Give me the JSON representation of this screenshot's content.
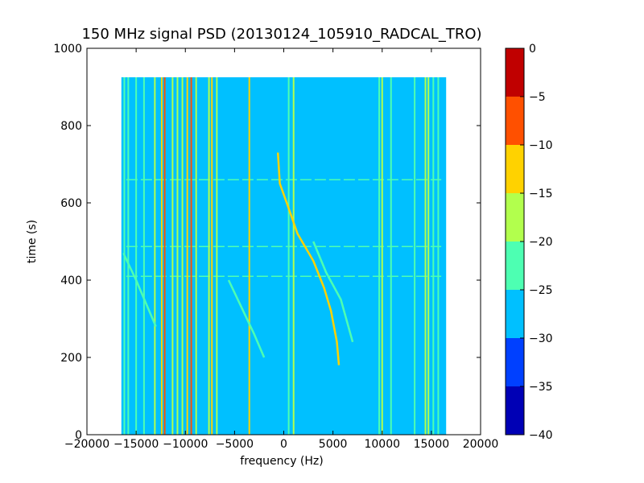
{
  "chart_data": {
    "type": "heatmap",
    "title": "150 MHz signal PSD (20130124_105910_RADCAL_TRO)",
    "xlabel": "frequency (Hz)",
    "ylabel": "time (s)",
    "xlim": [
      -20000,
      20000
    ],
    "ylim": [
      0,
      1000
    ],
    "xticks": [
      "−20000",
      "−15000",
      "−10000",
      "−5000",
      "0",
      "5000",
      "10000",
      "15000",
      "20000"
    ],
    "yticks": [
      "0",
      "200",
      "400",
      "600",
      "800",
      "1000"
    ],
    "data_extent": {
      "x": [
        -16500,
        16500
      ],
      "y": [
        0,
        925
      ]
    },
    "colorbar": {
      "range": [
        -40,
        0
      ],
      "levels": [
        -40,
        -35,
        -30,
        -25,
        -20,
        -15,
        -10,
        -5,
        0
      ],
      "ticks": [
        "−40",
        "−35",
        "−30",
        "−25",
        "−20",
        "−15",
        "−10",
        "−5",
        "0"
      ],
      "colors": [
        "#0000b5",
        "#0040ff",
        "#00c0ff",
        "#4dffb2",
        "#b2ff4d",
        "#ffd200",
        "#ff5000",
        "#c00000"
      ]
    },
    "background_level": -27,
    "vertical_lines": [
      {
        "f": -16200,
        "level": -22
      },
      {
        "f": -15800,
        "level": -22
      },
      {
        "f": -15000,
        "level": -24
      },
      {
        "f": -14200,
        "level": -22
      },
      {
        "f": -13100,
        "level": -20
      },
      {
        "f": -12400,
        "level": -14
      },
      {
        "f": -12100,
        "level": -7
      },
      {
        "f": -11300,
        "level": -20
      },
      {
        "f": -10800,
        "level": -18
      },
      {
        "f": -10300,
        "level": -18
      },
      {
        "f": -9800,
        "level": -12
      },
      {
        "f": -9400,
        "level": -6
      },
      {
        "f": -8900,
        "level": -16
      },
      {
        "f": -7600,
        "level": -18
      },
      {
        "f": -7300,
        "level": -12
      },
      {
        "f": -6800,
        "level": -20
      },
      {
        "f": -3500,
        "level": -12
      },
      {
        "f": 500,
        "level": -22
      },
      {
        "f": 1000,
        "level": -20
      },
      {
        "f": 9700,
        "level": -22
      },
      {
        "f": 10000,
        "level": -20
      },
      {
        "f": 10900,
        "level": -22
      },
      {
        "f": 13300,
        "level": -22
      },
      {
        "f": 14400,
        "level": -20
      },
      {
        "f": 14700,
        "level": -18
      },
      {
        "f": 15200,
        "level": -22
      },
      {
        "f": 15700,
        "level": -24
      }
    ],
    "drift_tracks": [
      {
        "name": "main",
        "level": -15,
        "points": [
          [
            -600,
            730
          ],
          [
            -400,
            650
          ],
          [
            300,
            600
          ],
          [
            1400,
            520
          ],
          [
            3000,
            450
          ],
          [
            4100,
            380
          ],
          [
            4800,
            320
          ],
          [
            5400,
            240
          ],
          [
            5600,
            180
          ]
        ]
      },
      {
        "name": "echo-right",
        "level": -22,
        "points": [
          [
            3000,
            500
          ],
          [
            4300,
            420
          ],
          [
            5800,
            350
          ],
          [
            7000,
            240
          ]
        ]
      },
      {
        "name": "echo-left",
        "level": -22,
        "points": [
          [
            -16300,
            470
          ],
          [
            -15000,
            400
          ],
          [
            -13000,
            280
          ]
        ]
      },
      {
        "name": "faint-mid",
        "level": -23,
        "points": [
          [
            -5600,
            400
          ],
          [
            -3000,
            260
          ],
          [
            -2000,
            200
          ]
        ]
      }
    ],
    "horizontal_lines": [
      {
        "t": 410,
        "level": -23,
        "x": [
          -16000,
          16000
        ]
      },
      {
        "t": 487,
        "level": -23,
        "x": [
          -16000,
          16000
        ]
      },
      {
        "t": 660,
        "level": -25,
        "x": [
          -16000,
          16000
        ]
      }
    ]
  }
}
